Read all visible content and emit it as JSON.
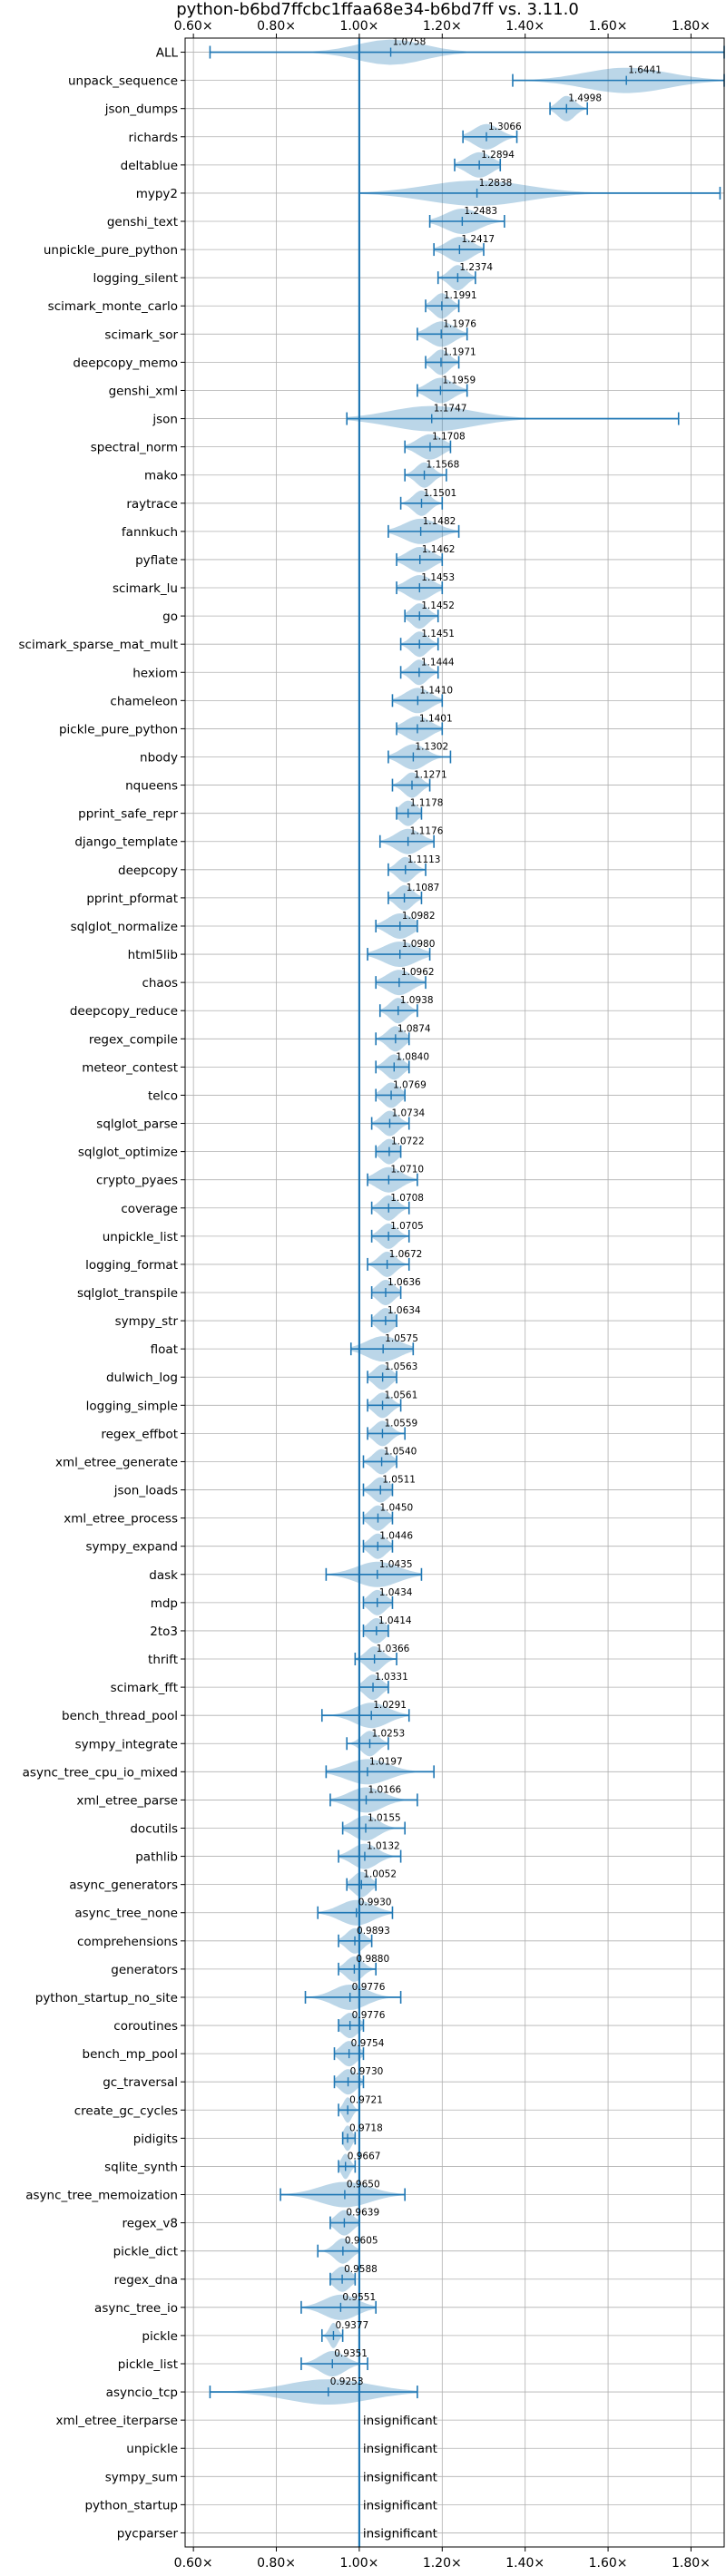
{
  "chart_data": {
    "type": "violin",
    "title": "python-b6bd7ffcbc1ffaa68e34-b6bd7ff vs. 3.11.0",
    "xlim": [
      0.58,
      1.88
    ],
    "xticks": [
      0.6,
      0.8,
      1.0,
      1.2,
      1.4,
      1.6,
      1.8
    ],
    "xtick_labels": [
      "0.60×",
      "0.80×",
      "1.00×",
      "1.20×",
      "1.40×",
      "1.60×",
      "1.80×"
    ],
    "grid": true,
    "reference_line": 1.0,
    "insignificant_label": "insignificant",
    "rows": [
      {
        "name": "ALL",
        "mean": 1.0758,
        "label": "1.0758",
        "min": 0.64,
        "max": 1.88,
        "spread": 0.08
      },
      {
        "name": "unpack_sequence",
        "mean": 1.6441,
        "label": "1.6441",
        "min": 1.37,
        "max": 1.88,
        "spread": 0.1
      },
      {
        "name": "json_dumps",
        "mean": 1.4998,
        "label": "1.4998",
        "min": 1.46,
        "max": 1.55,
        "spread": 0.02
      },
      {
        "name": "richards",
        "mean": 1.3066,
        "label": "1.3066",
        "min": 1.25,
        "max": 1.38,
        "spread": 0.03
      },
      {
        "name": "deltablue",
        "mean": 1.2894,
        "label": "1.2894",
        "min": 1.23,
        "max": 1.34,
        "spread": 0.03
      },
      {
        "name": "mypy2",
        "mean": 1.2838,
        "label": "1.2838",
        "min": 1.0,
        "max": 1.87,
        "spread": 0.12
      },
      {
        "name": "genshi_text",
        "mean": 1.2483,
        "label": "1.2483",
        "min": 1.17,
        "max": 1.35,
        "spread": 0.04
      },
      {
        "name": "unpickle_pure_python",
        "mean": 1.2417,
        "label": "1.2417",
        "min": 1.18,
        "max": 1.3,
        "spread": 0.03
      },
      {
        "name": "logging_silent",
        "mean": 1.2374,
        "label": "1.2374",
        "min": 1.19,
        "max": 1.28,
        "spread": 0.02
      },
      {
        "name": "scimark_monte_carlo",
        "mean": 1.1991,
        "label": "1.1991",
        "min": 1.16,
        "max": 1.24,
        "spread": 0.02
      },
      {
        "name": "scimark_sor",
        "mean": 1.1976,
        "label": "1.1976",
        "min": 1.14,
        "max": 1.26,
        "spread": 0.03
      },
      {
        "name": "deepcopy_memo",
        "mean": 1.1971,
        "label": "1.1971",
        "min": 1.16,
        "max": 1.24,
        "spread": 0.02
      },
      {
        "name": "genshi_xml",
        "mean": 1.1959,
        "label": "1.1959",
        "min": 1.14,
        "max": 1.26,
        "spread": 0.03
      },
      {
        "name": "json",
        "mean": 1.1747,
        "label": "1.1747",
        "min": 0.97,
        "max": 1.77,
        "spread": 0.1
      },
      {
        "name": "spectral_norm",
        "mean": 1.1708,
        "label": "1.1708",
        "min": 1.11,
        "max": 1.22,
        "spread": 0.03
      },
      {
        "name": "mako",
        "mean": 1.1568,
        "label": "1.1568",
        "min": 1.11,
        "max": 1.21,
        "spread": 0.02
      },
      {
        "name": "raytrace",
        "mean": 1.1501,
        "label": "1.1501",
        "min": 1.1,
        "max": 1.2,
        "spread": 0.02
      },
      {
        "name": "fannkuch",
        "mean": 1.1482,
        "label": "1.1482",
        "min": 1.07,
        "max": 1.24,
        "spread": 0.04
      },
      {
        "name": "pyflate",
        "mean": 1.1462,
        "label": "1.1462",
        "min": 1.09,
        "max": 1.2,
        "spread": 0.03
      },
      {
        "name": "scimark_lu",
        "mean": 1.1453,
        "label": "1.1453",
        "min": 1.09,
        "max": 1.2,
        "spread": 0.03
      },
      {
        "name": "go",
        "mean": 1.1452,
        "label": "1.1452",
        "min": 1.11,
        "max": 1.19,
        "spread": 0.02
      },
      {
        "name": "scimark_sparse_mat_mult",
        "mean": 1.1451,
        "label": "1.1451",
        "min": 1.1,
        "max": 1.19,
        "spread": 0.02
      },
      {
        "name": "hexiom",
        "mean": 1.1444,
        "label": "1.1444",
        "min": 1.1,
        "max": 1.19,
        "spread": 0.02
      },
      {
        "name": "chameleon",
        "mean": 1.141,
        "label": "1.1410",
        "min": 1.08,
        "max": 1.2,
        "spread": 0.03
      },
      {
        "name": "pickle_pure_python",
        "mean": 1.1401,
        "label": "1.1401",
        "min": 1.09,
        "max": 1.2,
        "spread": 0.03
      },
      {
        "name": "nbody",
        "mean": 1.1302,
        "label": "1.1302",
        "min": 1.07,
        "max": 1.22,
        "spread": 0.03
      },
      {
        "name": "nqueens",
        "mean": 1.1271,
        "label": "1.1271",
        "min": 1.08,
        "max": 1.17,
        "spread": 0.02
      },
      {
        "name": "pprint_safe_repr",
        "mean": 1.1178,
        "label": "1.1178",
        "min": 1.09,
        "max": 1.15,
        "spread": 0.02
      },
      {
        "name": "django_template",
        "mean": 1.1176,
        "label": "1.1176",
        "min": 1.05,
        "max": 1.18,
        "spread": 0.03
      },
      {
        "name": "deepcopy",
        "mean": 1.1113,
        "label": "1.1113",
        "min": 1.07,
        "max": 1.16,
        "spread": 0.02
      },
      {
        "name": "pprint_pformat",
        "mean": 1.1087,
        "label": "1.1087",
        "min": 1.07,
        "max": 1.15,
        "spread": 0.02
      },
      {
        "name": "sqlglot_normalize",
        "mean": 1.0982,
        "label": "1.0982",
        "min": 1.04,
        "max": 1.14,
        "spread": 0.03
      },
      {
        "name": "html5lib",
        "mean": 1.098,
        "label": "1.0980",
        "min": 1.02,
        "max": 1.17,
        "spread": 0.04
      },
      {
        "name": "chaos",
        "mean": 1.0962,
        "label": "1.0962",
        "min": 1.04,
        "max": 1.16,
        "spread": 0.03
      },
      {
        "name": "deepcopy_reduce",
        "mean": 1.0938,
        "label": "1.0938",
        "min": 1.05,
        "max": 1.14,
        "spread": 0.02
      },
      {
        "name": "regex_compile",
        "mean": 1.0874,
        "label": "1.0874",
        "min": 1.04,
        "max": 1.12,
        "spread": 0.02
      },
      {
        "name": "meteor_contest",
        "mean": 1.084,
        "label": "1.0840",
        "min": 1.04,
        "max": 1.12,
        "spread": 0.02
      },
      {
        "name": "telco",
        "mean": 1.0769,
        "label": "1.0769",
        "min": 1.04,
        "max": 1.11,
        "spread": 0.02
      },
      {
        "name": "sqlglot_parse",
        "mean": 1.0734,
        "label": "1.0734",
        "min": 1.03,
        "max": 1.12,
        "spread": 0.02
      },
      {
        "name": "sqlglot_optimize",
        "mean": 1.0722,
        "label": "1.0722",
        "min": 1.04,
        "max": 1.1,
        "spread": 0.02
      },
      {
        "name": "crypto_pyaes",
        "mean": 1.071,
        "label": "1.0710",
        "min": 1.02,
        "max": 1.14,
        "spread": 0.03
      },
      {
        "name": "coverage",
        "mean": 1.0708,
        "label": "1.0708",
        "min": 1.03,
        "max": 1.12,
        "spread": 0.02
      },
      {
        "name": "unpickle_list",
        "mean": 1.0705,
        "label": "1.0705",
        "min": 1.03,
        "max": 1.12,
        "spread": 0.02
      },
      {
        "name": "logging_format",
        "mean": 1.0672,
        "label": "1.0672",
        "min": 1.02,
        "max": 1.12,
        "spread": 0.02
      },
      {
        "name": "sqlglot_transpile",
        "mean": 1.0636,
        "label": "1.0636",
        "min": 1.03,
        "max": 1.1,
        "spread": 0.02
      },
      {
        "name": "sympy_str",
        "mean": 1.0634,
        "label": "1.0634",
        "min": 1.03,
        "max": 1.09,
        "spread": 0.02
      },
      {
        "name": "float",
        "mean": 1.0575,
        "label": "1.0575",
        "min": 0.98,
        "max": 1.13,
        "spread": 0.04
      },
      {
        "name": "dulwich_log",
        "mean": 1.0563,
        "label": "1.0563",
        "min": 1.02,
        "max": 1.09,
        "spread": 0.02
      },
      {
        "name": "logging_simple",
        "mean": 1.0561,
        "label": "1.0561",
        "min": 1.02,
        "max": 1.1,
        "spread": 0.02
      },
      {
        "name": "regex_effbot",
        "mean": 1.0559,
        "label": "1.0559",
        "min": 1.02,
        "max": 1.11,
        "spread": 0.02
      },
      {
        "name": "xml_etree_generate",
        "mean": 1.054,
        "label": "1.0540",
        "min": 1.01,
        "max": 1.09,
        "spread": 0.02
      },
      {
        "name": "json_loads",
        "mean": 1.0511,
        "label": "1.0511",
        "min": 1.01,
        "max": 1.08,
        "spread": 0.02
      },
      {
        "name": "xml_etree_process",
        "mean": 1.045,
        "label": "1.0450",
        "min": 1.01,
        "max": 1.08,
        "spread": 0.02
      },
      {
        "name": "sympy_expand",
        "mean": 1.0446,
        "label": "1.0446",
        "min": 1.01,
        "max": 1.08,
        "spread": 0.02
      },
      {
        "name": "dask",
        "mean": 1.0435,
        "label": "1.0435",
        "min": 0.92,
        "max": 1.15,
        "spread": 0.05
      },
      {
        "name": "mdp",
        "mean": 1.0434,
        "label": "1.0434",
        "min": 1.01,
        "max": 1.08,
        "spread": 0.02
      },
      {
        "name": "2to3",
        "mean": 1.0414,
        "label": "1.0414",
        "min": 1.01,
        "max": 1.07,
        "spread": 0.02
      },
      {
        "name": "thrift",
        "mean": 1.0366,
        "label": "1.0366",
        "min": 0.99,
        "max": 1.09,
        "spread": 0.02
      },
      {
        "name": "scimark_fft",
        "mean": 1.0331,
        "label": "1.0331",
        "min": 1.0,
        "max": 1.07,
        "spread": 0.02
      },
      {
        "name": "bench_thread_pool",
        "mean": 1.0291,
        "label": "1.0291",
        "min": 0.91,
        "max": 1.12,
        "spread": 0.04
      },
      {
        "name": "sympy_integrate",
        "mean": 1.0253,
        "label": "1.0253",
        "min": 0.97,
        "max": 1.07,
        "spread": 0.02
      },
      {
        "name": "async_tree_cpu_io_mixed",
        "mean": 1.0197,
        "label": "1.0197",
        "min": 0.92,
        "max": 1.18,
        "spread": 0.05
      },
      {
        "name": "xml_etree_parse",
        "mean": 1.0166,
        "label": "1.0166",
        "min": 0.93,
        "max": 1.14,
        "spread": 0.04
      },
      {
        "name": "docutils",
        "mean": 1.0155,
        "label": "1.0155",
        "min": 0.96,
        "max": 1.11,
        "spread": 0.03
      },
      {
        "name": "pathlib",
        "mean": 1.0132,
        "label": "1.0132",
        "min": 0.95,
        "max": 1.1,
        "spread": 0.03
      },
      {
        "name": "async_generators",
        "mean": 1.0052,
        "label": "1.0052",
        "min": 0.97,
        "max": 1.04,
        "spread": 0.02
      },
      {
        "name": "async_tree_none",
        "mean": 0.993,
        "label": "0.9930",
        "min": 0.9,
        "max": 1.08,
        "spread": 0.04
      },
      {
        "name": "comprehensions",
        "mean": 0.9893,
        "label": "0.9893",
        "min": 0.95,
        "max": 1.03,
        "spread": 0.02
      },
      {
        "name": "generators",
        "mean": 0.988,
        "label": "0.9880",
        "min": 0.95,
        "max": 1.04,
        "spread": 0.02
      },
      {
        "name": "python_startup_no_site",
        "mean": 0.9776,
        "label": "0.9776",
        "min": 0.87,
        "max": 1.1,
        "spread": 0.04
      },
      {
        "name": "coroutines",
        "mean": 0.9776,
        "label": "0.9776",
        "min": 0.95,
        "max": 1.01,
        "spread": 0.02
      },
      {
        "name": "bench_mp_pool",
        "mean": 0.9754,
        "label": "0.9754",
        "min": 0.94,
        "max": 1.01,
        "spread": 0.02
      },
      {
        "name": "gc_traversal",
        "mean": 0.973,
        "label": "0.9730",
        "min": 0.94,
        "max": 1.01,
        "spread": 0.02
      },
      {
        "name": "create_gc_cycles",
        "mean": 0.9721,
        "label": "0.9721",
        "min": 0.95,
        "max": 1.0,
        "spread": 0.01
      },
      {
        "name": "pidigits",
        "mean": 0.9718,
        "label": "0.9718",
        "min": 0.96,
        "max": 0.99,
        "spread": 0.01
      },
      {
        "name": "sqlite_synth",
        "mean": 0.9667,
        "label": "0.9667",
        "min": 0.95,
        "max": 0.99,
        "spread": 0.01
      },
      {
        "name": "async_tree_memoization",
        "mean": 0.965,
        "label": "0.9650",
        "min": 0.81,
        "max": 1.11,
        "spread": 0.06
      },
      {
        "name": "regex_v8",
        "mean": 0.9639,
        "label": "0.9639",
        "min": 0.93,
        "max": 1.0,
        "spread": 0.02
      },
      {
        "name": "pickle_dict",
        "mean": 0.9605,
        "label": "0.9605",
        "min": 0.9,
        "max": 1.0,
        "spread": 0.02
      },
      {
        "name": "regex_dna",
        "mean": 0.9588,
        "label": "0.9588",
        "min": 0.93,
        "max": 0.99,
        "spread": 0.02
      },
      {
        "name": "async_tree_io",
        "mean": 0.9551,
        "label": "0.9551",
        "min": 0.86,
        "max": 1.04,
        "spread": 0.04
      },
      {
        "name": "pickle",
        "mean": 0.9377,
        "label": "0.9377",
        "min": 0.91,
        "max": 0.96,
        "spread": 0.01
      },
      {
        "name": "pickle_list",
        "mean": 0.9351,
        "label": "0.9351",
        "min": 0.86,
        "max": 1.02,
        "spread": 0.03
      },
      {
        "name": "asyncio_tcp",
        "mean": 0.9253,
        "label": "0.9253",
        "min": 0.64,
        "max": 1.14,
        "spread": 0.1
      },
      {
        "name": "xml_etree_iterparse",
        "insignificant": true
      },
      {
        "name": "unpickle",
        "insignificant": true
      },
      {
        "name": "sympy_sum",
        "insignificant": true
      },
      {
        "name": "python_startup",
        "insignificant": true
      },
      {
        "name": "pycparser",
        "insignificant": true
      }
    ]
  }
}
